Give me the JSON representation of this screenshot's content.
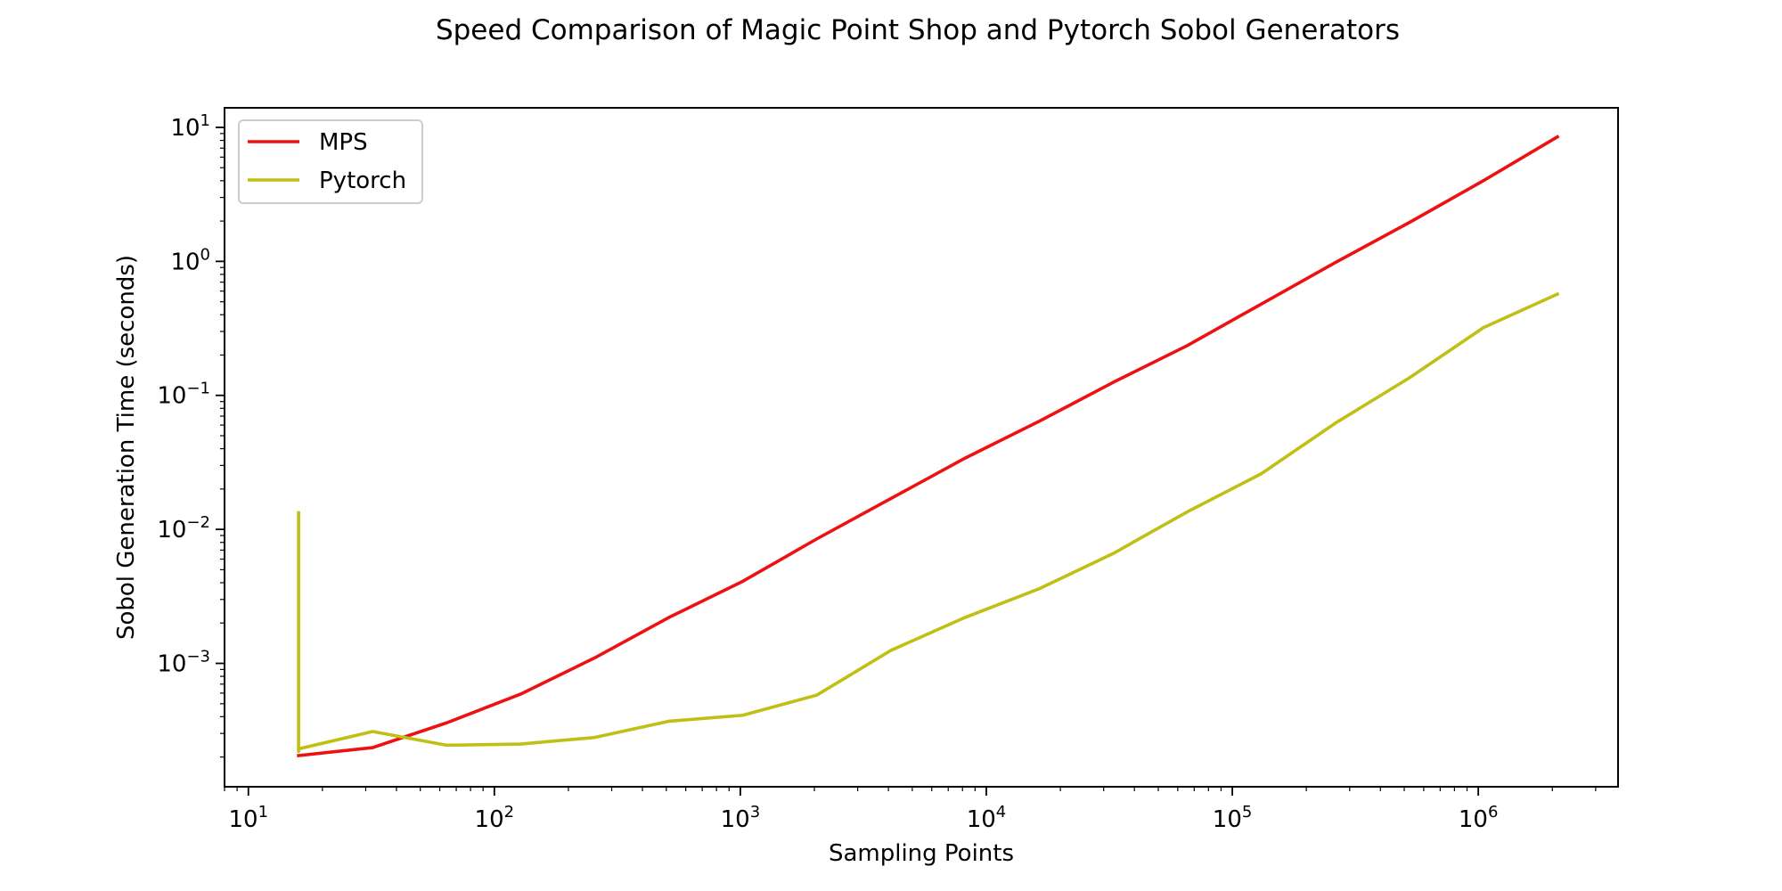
{
  "chart_data": {
    "type": "line",
    "title": "Speed Comparison of Magic Point Shop and Pytorch Sobol Generators",
    "xlabel": "Sampling Points",
    "ylabel": "Sobol Generation Time (seconds)",
    "xscale": "log",
    "yscale": "log",
    "xlim": [
      8,
      3700000
    ],
    "ylim": [
      0.00012,
      14
    ],
    "x_ticks": [
      {
        "value": 10,
        "base": "10",
        "exp": "1"
      },
      {
        "value": 100,
        "base": "10",
        "exp": "2"
      },
      {
        "value": 1000,
        "base": "10",
        "exp": "3"
      },
      {
        "value": 10000,
        "base": "10",
        "exp": "4"
      },
      {
        "value": 100000,
        "base": "10",
        "exp": "5"
      },
      {
        "value": 1000000,
        "base": "10",
        "exp": "6"
      }
    ],
    "y_ticks": [
      {
        "value": 10,
        "base": "10",
        "exp": "1"
      },
      {
        "value": 1,
        "base": "10",
        "exp": "0"
      },
      {
        "value": 0.1,
        "base": "10",
        "exp": "−1"
      },
      {
        "value": 0.01,
        "base": "10",
        "exp": "−2"
      },
      {
        "value": 0.001,
        "base": "10",
        "exp": "−3"
      }
    ],
    "grid": false,
    "legend_position": "top-left",
    "series": [
      {
        "name": "MPS",
        "color": "#ee1111",
        "x": [
          16,
          32,
          64,
          128,
          256,
          512,
          1024,
          2048,
          4096,
          8192,
          16384,
          32768,
          65536,
          131072,
          262144,
          524288,
          1048576,
          2097152
        ],
        "y": [
          0.000205,
          0.000235,
          0.00036,
          0.00059,
          0.0011,
          0.0022,
          0.0041,
          0.0085,
          0.017,
          0.034,
          0.064,
          0.125,
          0.235,
          0.48,
          0.98,
          1.95,
          4.0,
          8.5
        ]
      },
      {
        "name": "Pytorch",
        "color": "#bfbf14",
        "x": [
          16,
          16,
          16,
          16,
          16,
          32,
          64,
          128,
          256,
          512,
          1024,
          2048,
          4096,
          8192,
          16384,
          32768,
          65536,
          131072,
          262144,
          524288,
          1048576,
          2097152
        ],
        "y": [
          0.0133,
          0.00023,
          0.0025,
          0.00022,
          0.00023,
          0.00031,
          0.000245,
          0.00025,
          0.00028,
          0.00037,
          0.00041,
          0.00058,
          0.00125,
          0.0022,
          0.0036,
          0.0066,
          0.0135,
          0.026,
          0.062,
          0.135,
          0.32,
          0.57
        ]
      }
    ]
  }
}
